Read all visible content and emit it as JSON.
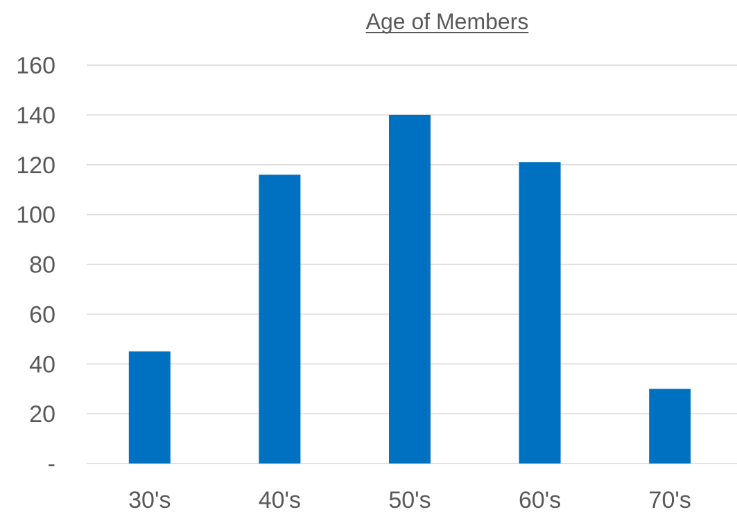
{
  "chart_data": {
    "type": "bar",
    "title": "Age of Members",
    "title_underlined": true,
    "xlabel": "",
    "ylabel": "",
    "categories": [
      "30's",
      "40's",
      "50's",
      "60's",
      "70's"
    ],
    "values": [
      45,
      116,
      140,
      121,
      30
    ],
    "ylim": [
      0,
      160
    ],
    "yticks": [
      0,
      20,
      40,
      60,
      80,
      100,
      120,
      140,
      160
    ],
    "ytick_labels": [
      "-",
      "20",
      "40",
      "60",
      "80",
      "100",
      "120",
      "140",
      "160"
    ],
    "grid": true,
    "legend": "none",
    "colors": {
      "bar": "#0070c0",
      "grid": "#d9d9d9",
      "text": "#595959"
    }
  }
}
